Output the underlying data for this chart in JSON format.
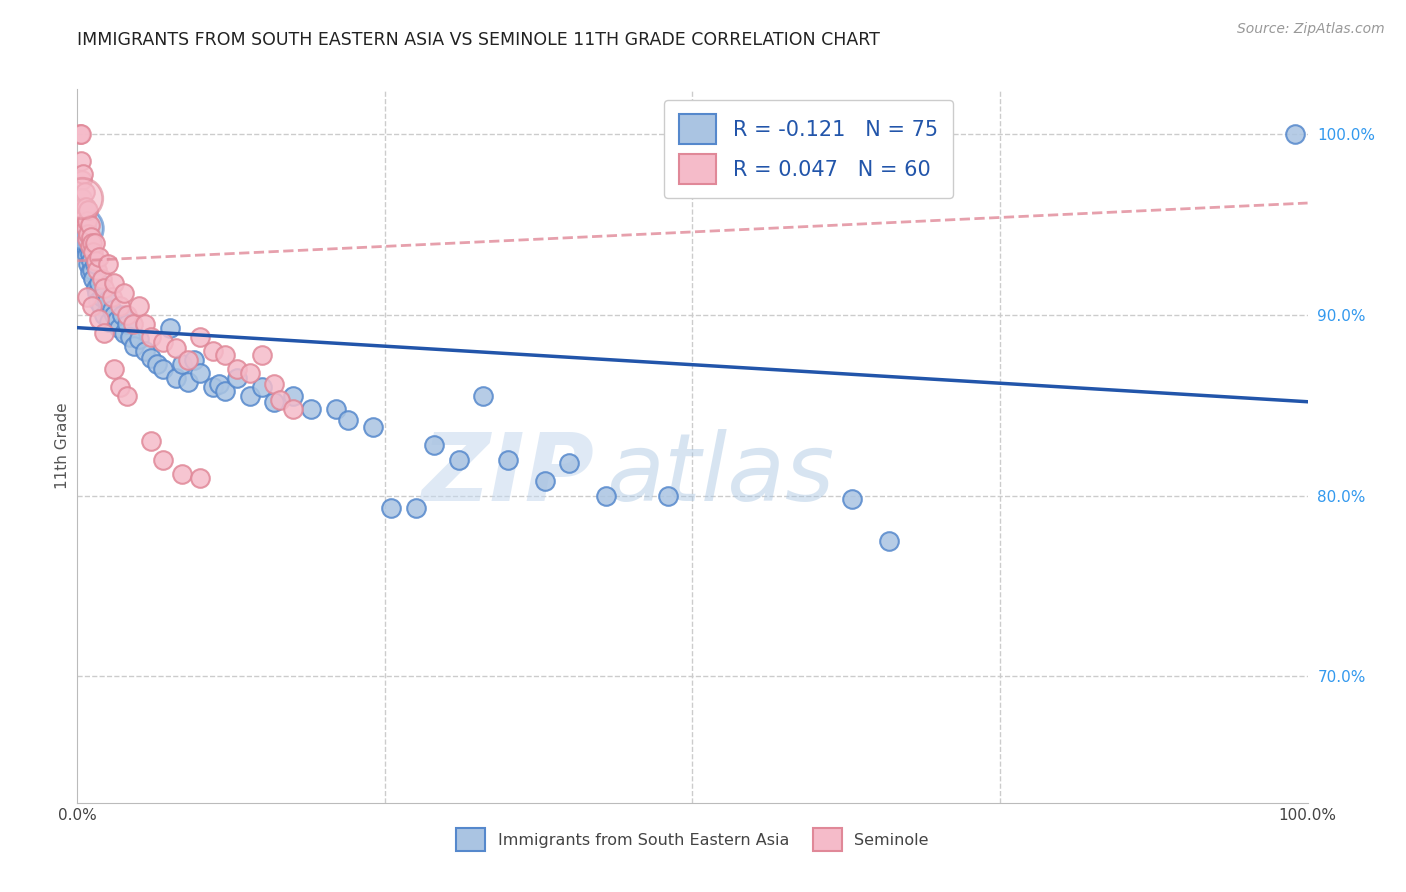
{
  "title": "IMMIGRANTS FROM SOUTH EASTERN ASIA VS SEMINOLE 11TH GRADE CORRELATION CHART",
  "source": "Source: ZipAtlas.com",
  "ylabel": "11th Grade",
  "xlim": [
    0.0,
    1.0
  ],
  "ylim": [
    0.63,
    1.025
  ],
  "legend_label_blue": "Immigrants from South Eastern Asia",
  "legend_label_pink": "Seminole",
  "blue_color": "#aac4e2",
  "blue_edge": "#5588cc",
  "pink_color": "#f5bbc9",
  "pink_edge": "#e08898",
  "trend_blue_color": "#2255aa",
  "trend_pink_color": "#e08898",
  "watermark_zip": "ZIP",
  "watermark_atlas": "atlas",
  "blue_trend_x": [
    0.0,
    1.0
  ],
  "blue_trend_y": [
    0.893,
    0.852
  ],
  "pink_trend_x": [
    0.0,
    1.0
  ],
  "pink_trend_y": [
    0.93,
    0.962
  ],
  "yticks": [
    1.0,
    0.9,
    0.8,
    0.7
  ],
  "ytick_labels": [
    "100.0%",
    "90.0%",
    "80.0%",
    "70.0%"
  ],
  "grid_color": "#cccccc",
  "background_color": "#ffffff",
  "title_fontsize": 12.5,
  "source_fontsize": 10,
  "blue_points": [
    [
      0.003,
      0.96
    ],
    [
      0.003,
      0.953
    ],
    [
      0.004,
      0.958
    ],
    [
      0.004,
      0.948
    ],
    [
      0.005,
      0.956
    ],
    [
      0.005,
      0.945
    ],
    [
      0.005,
      0.94
    ],
    [
      0.006,
      0.952
    ],
    [
      0.006,
      0.943
    ],
    [
      0.007,
      0.948
    ],
    [
      0.007,
      0.937
    ],
    [
      0.008,
      0.944
    ],
    [
      0.008,
      0.933
    ],
    [
      0.009,
      0.939
    ],
    [
      0.009,
      0.928
    ],
    [
      0.01,
      0.934
    ],
    [
      0.01,
      0.924
    ],
    [
      0.011,
      0.93
    ],
    [
      0.012,
      0.925
    ],
    [
      0.013,
      0.92
    ],
    [
      0.014,
      0.928
    ],
    [
      0.015,
      0.915
    ],
    [
      0.016,
      0.912
    ],
    [
      0.017,
      0.908
    ],
    [
      0.018,
      0.918
    ],
    [
      0.019,
      0.905
    ],
    [
      0.02,
      0.91
    ],
    [
      0.022,
      0.9
    ],
    [
      0.024,
      0.908
    ],
    [
      0.026,
      0.896
    ],
    [
      0.028,
      0.903
    ],
    [
      0.03,
      0.9
    ],
    [
      0.032,
      0.897
    ],
    [
      0.034,
      0.893
    ],
    [
      0.036,
      0.9
    ],
    [
      0.038,
      0.89
    ],
    [
      0.04,
      0.895
    ],
    [
      0.043,
      0.888
    ],
    [
      0.046,
      0.883
    ],
    [
      0.05,
      0.887
    ],
    [
      0.055,
      0.88
    ],
    [
      0.06,
      0.876
    ],
    [
      0.065,
      0.873
    ],
    [
      0.07,
      0.87
    ],
    [
      0.075,
      0.893
    ],
    [
      0.08,
      0.865
    ],
    [
      0.085,
      0.873
    ],
    [
      0.09,
      0.863
    ],
    [
      0.095,
      0.875
    ],
    [
      0.1,
      0.868
    ],
    [
      0.11,
      0.86
    ],
    [
      0.115,
      0.862
    ],
    [
      0.12,
      0.858
    ],
    [
      0.13,
      0.865
    ],
    [
      0.14,
      0.855
    ],
    [
      0.15,
      0.86
    ],
    [
      0.16,
      0.852
    ],
    [
      0.175,
      0.855
    ],
    [
      0.19,
      0.848
    ],
    [
      0.21,
      0.848
    ],
    [
      0.22,
      0.842
    ],
    [
      0.24,
      0.838
    ],
    [
      0.255,
      0.793
    ],
    [
      0.275,
      0.793
    ],
    [
      0.29,
      0.828
    ],
    [
      0.31,
      0.82
    ],
    [
      0.33,
      0.855
    ],
    [
      0.35,
      0.82
    ],
    [
      0.38,
      0.808
    ],
    [
      0.4,
      0.818
    ],
    [
      0.43,
      0.8
    ],
    [
      0.48,
      0.8
    ],
    [
      0.63,
      0.798
    ],
    [
      0.66,
      0.775
    ],
    [
      0.99,
      1.0
    ]
  ],
  "pink_points": [
    [
      0.002,
      1.0
    ],
    [
      0.003,
      1.0
    ],
    [
      0.003,
      0.985
    ],
    [
      0.004,
      0.975
    ],
    [
      0.004,
      0.965
    ],
    [
      0.005,
      0.978
    ],
    [
      0.005,
      0.96
    ],
    [
      0.005,
      0.953
    ],
    [
      0.006,
      0.968
    ],
    [
      0.006,
      0.955
    ],
    [
      0.007,
      0.96
    ],
    [
      0.007,
      0.948
    ],
    [
      0.008,
      0.952
    ],
    [
      0.008,
      0.942
    ],
    [
      0.009,
      0.958
    ],
    [
      0.009,
      0.945
    ],
    [
      0.01,
      0.95
    ],
    [
      0.01,
      0.938
    ],
    [
      0.011,
      0.943
    ],
    [
      0.012,
      0.94
    ],
    [
      0.013,
      0.935
    ],
    [
      0.014,
      0.94
    ],
    [
      0.015,
      0.93
    ],
    [
      0.016,
      0.925
    ],
    [
      0.018,
      0.932
    ],
    [
      0.02,
      0.92
    ],
    [
      0.022,
      0.915
    ],
    [
      0.025,
      0.928
    ],
    [
      0.028,
      0.91
    ],
    [
      0.03,
      0.918
    ],
    [
      0.035,
      0.905
    ],
    [
      0.038,
      0.912
    ],
    [
      0.04,
      0.9
    ],
    [
      0.045,
      0.895
    ],
    [
      0.05,
      0.905
    ],
    [
      0.055,
      0.895
    ],
    [
      0.06,
      0.888
    ],
    [
      0.07,
      0.885
    ],
    [
      0.08,
      0.882
    ],
    [
      0.09,
      0.875
    ],
    [
      0.1,
      0.888
    ],
    [
      0.11,
      0.88
    ],
    [
      0.12,
      0.878
    ],
    [
      0.13,
      0.87
    ],
    [
      0.14,
      0.868
    ],
    [
      0.15,
      0.878
    ],
    [
      0.16,
      0.862
    ],
    [
      0.165,
      0.853
    ],
    [
      0.175,
      0.848
    ],
    [
      0.03,
      0.87
    ],
    [
      0.035,
      0.86
    ],
    [
      0.04,
      0.855
    ],
    [
      0.008,
      0.91
    ],
    [
      0.012,
      0.905
    ],
    [
      0.018,
      0.898
    ],
    [
      0.022,
      0.89
    ],
    [
      0.06,
      0.83
    ],
    [
      0.07,
      0.82
    ],
    [
      0.085,
      0.812
    ],
    [
      0.1,
      0.81
    ]
  ]
}
